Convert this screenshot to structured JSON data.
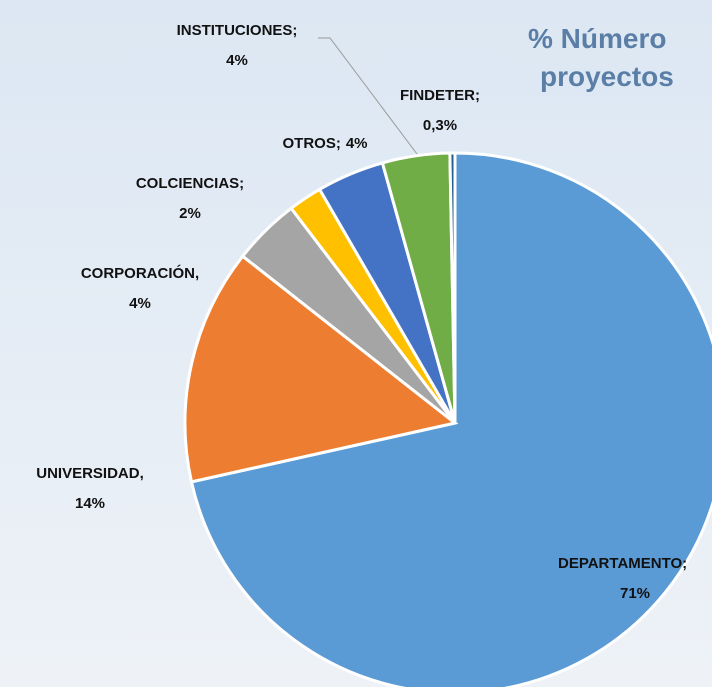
{
  "chart_data": {
    "type": "pie",
    "title_lines": [
      "% Número",
      "proyectos"
    ],
    "categories": [
      "DEPARTAMENTO",
      "UNIVERSIDAD",
      "CORPORACIÓN",
      "COLCIENCIAS",
      "OTROS",
      "INSTITUCIONES",
      "FINDETER"
    ],
    "separators": [
      ";",
      ",",
      ",",
      ";",
      ";",
      ";",
      ";"
    ],
    "values": [
      71,
      14,
      4,
      2,
      4,
      4,
      0.3
    ],
    "value_labels": [
      "71%",
      "14%",
      "4%",
      "2%",
      "4%",
      "4%",
      "0,3%"
    ],
    "colors": [
      "#5b9bd5",
      "#ed7d31",
      "#a5a5a5",
      "#ffc000",
      "#4472c4",
      "#70ad47",
      "#255e91"
    ]
  }
}
